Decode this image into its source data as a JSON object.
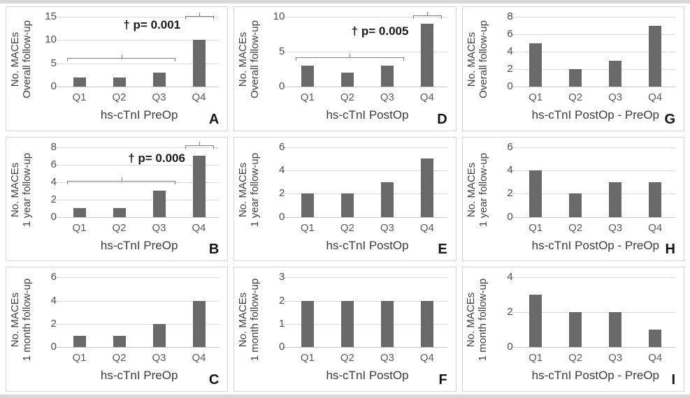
{
  "figure": {
    "description": "Nine bar charts (A-I) of number of MACEs by hs-cTnI quartile",
    "bar_color": "#696969",
    "gridline_color": "#d9d9d9",
    "categories": [
      "Q1",
      "Q2",
      "Q3",
      "Q4"
    ]
  },
  "chart_data": [
    {
      "type": "bar",
      "letter": "A",
      "ylabel": [
        "No. MACEs",
        "Overall follow-up"
      ],
      "xlabel": "hs-cTnI PreOp",
      "categories": [
        "Q1",
        "Q2",
        "Q3",
        "Q4"
      ],
      "values": [
        2,
        2,
        3,
        10
      ],
      "ymax": 15,
      "yticks": [
        0,
        5,
        10,
        15
      ],
      "annotation": {
        "text": "† p= 0.001",
        "x": 0.58,
        "y": 13.2
      },
      "brackets": [
        {
          "x1": 0.05,
          "x2": 0.73,
          "xc": 0.39,
          "y": 6.1
        },
        {
          "x1": 0.79,
          "x2": 0.97,
          "xc": 0.875,
          "y": 15.2
        }
      ]
    },
    {
      "type": "bar",
      "letter": "D",
      "ylabel": [
        "No. MACEs",
        "Overall follow-up"
      ],
      "xlabel": "hs-cTnI PostOp",
      "categories": [
        "Q1",
        "Q2",
        "Q3",
        "Q4"
      ],
      "values": [
        3,
        2,
        3,
        9
      ],
      "ymax": 10,
      "yticks": [
        0,
        5,
        10
      ],
      "annotation": {
        "text": "† p= 0.005",
        "x": 0.58,
        "y": 7.9
      },
      "brackets": [
        {
          "x1": 0.05,
          "x2": 0.73,
          "xc": 0.39,
          "y": 4.2
        },
        {
          "x1": 0.79,
          "x2": 0.97,
          "xc": 0.875,
          "y": 10.2
        }
      ]
    },
    {
      "type": "bar",
      "letter": "G",
      "ylabel": [
        "No. MACEs",
        "Overall follow-up"
      ],
      "xlabel": "hs-cTnI PostOp - PreOp",
      "categories": [
        "Q1",
        "Q2",
        "Q3",
        "Q4"
      ],
      "values": [
        5,
        2,
        3,
        7
      ],
      "ymax": 8,
      "yticks": [
        0,
        2,
        4,
        6,
        8
      ],
      "annotation": null,
      "brackets": []
    },
    {
      "type": "bar",
      "letter": "B",
      "ylabel": [
        "No. MACEs",
        "1 year follow-up"
      ],
      "xlabel": "hs-cTnI PreOp",
      "categories": [
        "Q1",
        "Q2",
        "Q3",
        "Q4"
      ],
      "values": [
        1,
        1,
        3,
        7
      ],
      "ymax": 8,
      "yticks": [
        0,
        2,
        4,
        6,
        8
      ],
      "annotation": {
        "text": "† p= 0.006",
        "x": 0.61,
        "y": 6.7
      },
      "brackets": [
        {
          "x1": 0.05,
          "x2": 0.73,
          "xc": 0.39,
          "y": 4.15
        },
        {
          "x1": 0.79,
          "x2": 0.97,
          "xc": 0.875,
          "y": 8.2
        }
      ]
    },
    {
      "type": "bar",
      "letter": "E",
      "ylabel": [
        "No. MACEs",
        "1 year follow-up"
      ],
      "xlabel": "hs-cTnI PostOp",
      "categories": [
        "Q1",
        "Q2",
        "Q3",
        "Q4"
      ],
      "values": [
        2,
        2,
        3,
        5
      ],
      "ymax": 6,
      "yticks": [
        0,
        2,
        4,
        6
      ],
      "annotation": null,
      "brackets": []
    },
    {
      "type": "bar",
      "letter": "H",
      "ylabel": [
        "No. MACEs",
        "1 year follow-up"
      ],
      "xlabel": "hs-cTnI PostOp - PreOp",
      "categories": [
        "Q1",
        "Q2",
        "Q3",
        "Q4"
      ],
      "values": [
        4,
        2,
        3,
        3
      ],
      "ymax": 6,
      "yticks": [
        0,
        2,
        4,
        6
      ],
      "annotation": null,
      "brackets": []
    },
    {
      "type": "bar",
      "letter": "C",
      "ylabel": [
        "No. MACEs",
        "1 month follow-up"
      ],
      "xlabel": "hs-cTnI PreOp",
      "categories": [
        "Q1",
        "Q2",
        "Q3",
        "Q4"
      ],
      "values": [
        1,
        1,
        2,
        4
      ],
      "ymax": 6,
      "yticks": [
        0,
        2,
        4,
        6
      ],
      "annotation": null,
      "brackets": []
    },
    {
      "type": "bar",
      "letter": "F",
      "ylabel": [
        "No. MACEs",
        "1 month follow-up"
      ],
      "xlabel": "hs-cTnI PostOp",
      "categories": [
        "Q1",
        "Q2",
        "Q3",
        "Q4"
      ],
      "values": [
        2,
        2,
        2,
        2
      ],
      "ymax": 3,
      "yticks": [
        0,
        1,
        2,
        3
      ],
      "annotation": null,
      "brackets": []
    },
    {
      "type": "bar",
      "letter": "I",
      "ylabel": [
        "No. MACEs",
        "1 month follow-up"
      ],
      "xlabel": "hs-cTnI PostOp - PreOp",
      "categories": [
        "Q1",
        "Q2",
        "Q3",
        "Q4"
      ],
      "values": [
        3,
        2,
        2,
        1
      ],
      "ymax": 4,
      "yticks": [
        0,
        2,
        4
      ],
      "annotation": null,
      "brackets": []
    }
  ]
}
